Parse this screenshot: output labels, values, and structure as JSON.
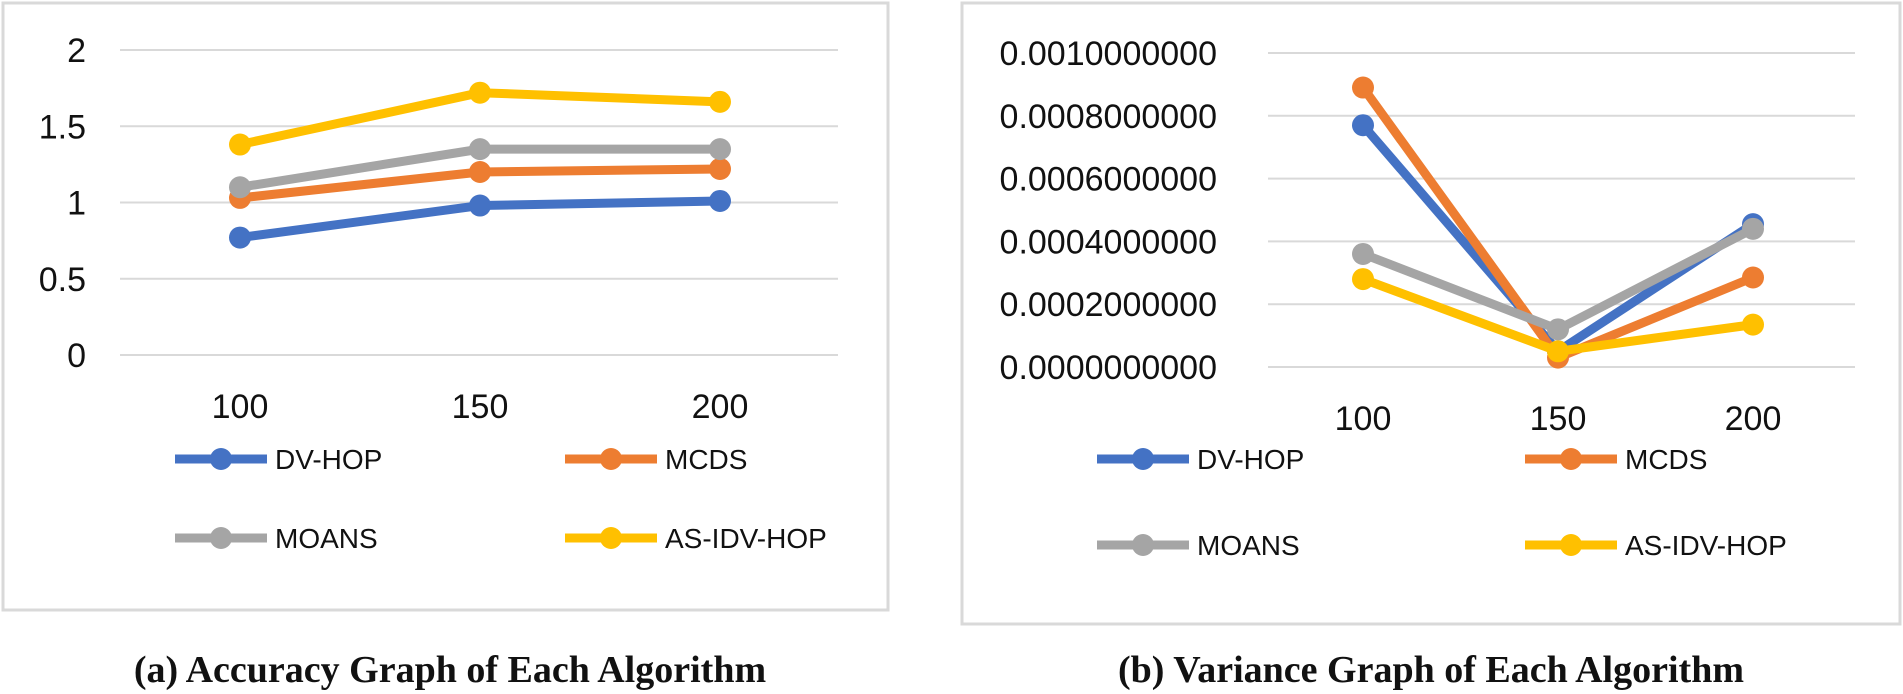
{
  "chart_data": [
    {
      "type": "line",
      "title": "",
      "caption": "(a) Accuracy Graph of Each Algorithm",
      "xlabel": "",
      "ylabel": "",
      "categories": [
        "100",
        "150",
        "200"
      ],
      "ylim": [
        0,
        2
      ],
      "yticks": [
        0,
        0.5,
        1,
        1.5,
        2
      ],
      "ytick_labels": [
        "0",
        "0.5",
        "1",
        "1.5",
        "2"
      ],
      "grid": true,
      "legend_position": "bottom",
      "series": [
        {
          "name": "DV-HOP",
          "color": "#4472C4",
          "values": [
            0.77,
            0.98,
            1.01
          ]
        },
        {
          "name": "MCDS",
          "color": "#ED7D31",
          "values": [
            1.03,
            1.2,
            1.22
          ]
        },
        {
          "name": "MOANS",
          "color": "#A5A5A5",
          "values": [
            1.1,
            1.35,
            1.35
          ]
        },
        {
          "name": "AS-IDV-HOP",
          "color": "#FFC000",
          "values": [
            1.38,
            1.72,
            1.66
          ]
        }
      ]
    },
    {
      "type": "line",
      "title": "",
      "caption": "(b) Variance Graph of Each Algorithm",
      "xlabel": "",
      "ylabel": "",
      "categories": [
        "100",
        "150",
        "200"
      ],
      "ylim": [
        0,
        0.001
      ],
      "yticks": [
        0,
        0.0002,
        0.0004,
        0.0006,
        0.0008,
        0.001
      ],
      "ytick_labels": [
        "0.0000000000",
        "0.0002000000",
        "0.0004000000",
        "0.0006000000",
        "0.0008000000",
        "0.0010000000"
      ],
      "grid": true,
      "legend_position": "bottom",
      "series": [
        {
          "name": "DV-HOP",
          "color": "#4472C4",
          "values": [
            0.00077,
            5e-05,
            0.000455
          ]
        },
        {
          "name": "MCDS",
          "color": "#ED7D31",
          "values": [
            0.00089,
            3e-05,
            0.000285
          ]
        },
        {
          "name": "MOANS",
          "color": "#A5A5A5",
          "values": [
            0.00036,
            0.00012,
            0.00044
          ]
        },
        {
          "name": "AS-IDV-HOP",
          "color": "#FFC000",
          "values": [
            0.00028,
            5e-05,
            0.000135
          ]
        }
      ]
    }
  ]
}
